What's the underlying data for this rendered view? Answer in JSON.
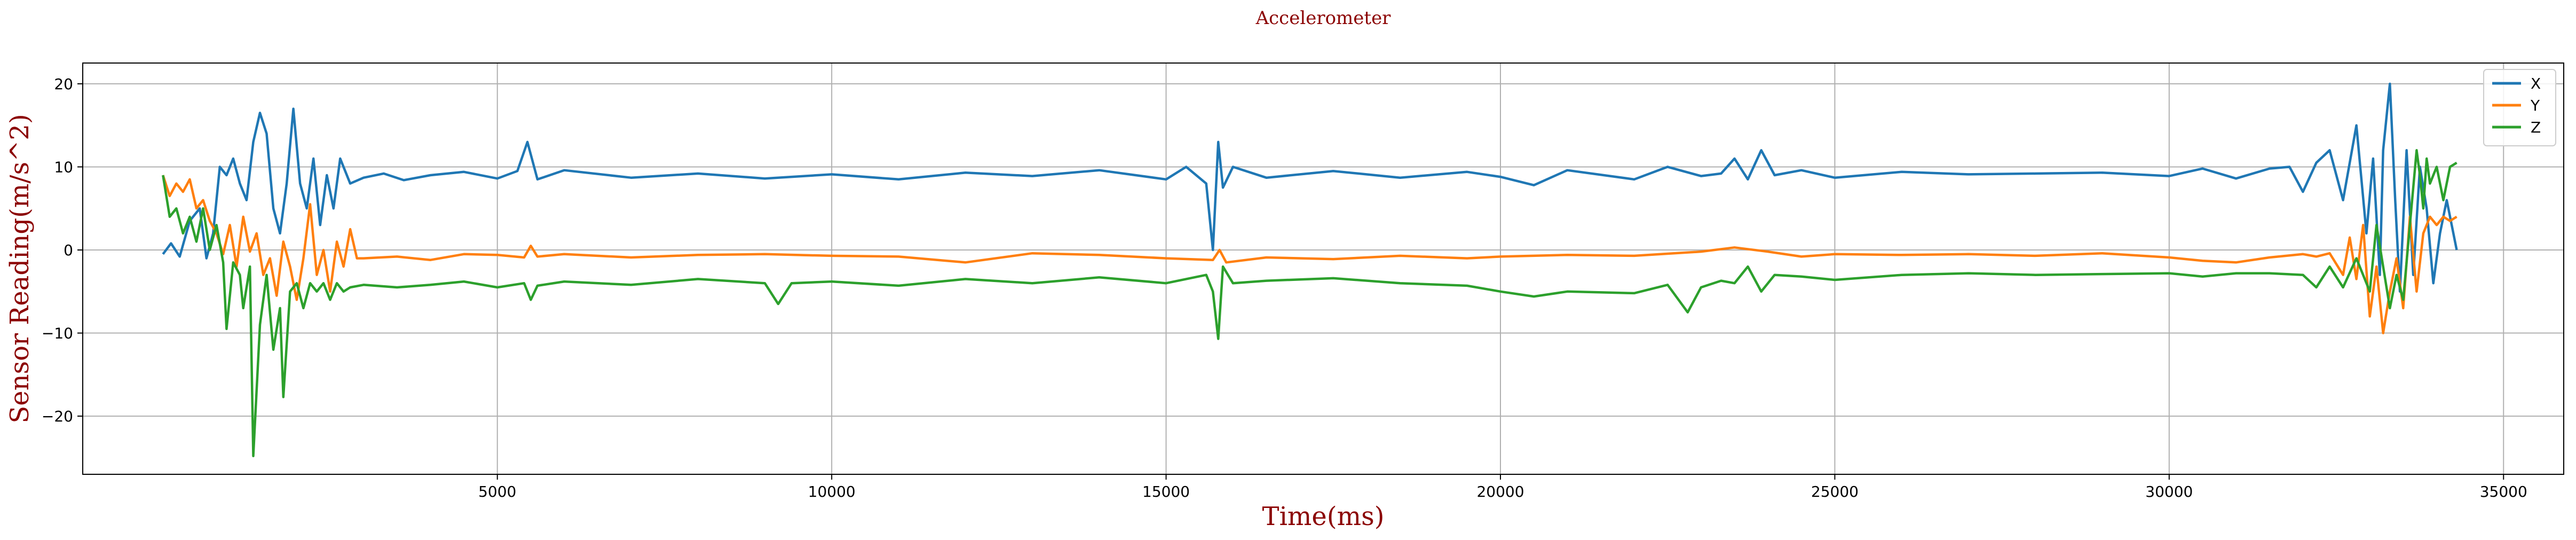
{
  "chart_data": {
    "type": "line",
    "title": "Accelerometer",
    "xlabel": "Time(ms)",
    "ylabel": "Sensor Reading(m/s^2)",
    "xlim": [
      -1200,
      35900
    ],
    "ylim": [
      -27,
      22.5
    ],
    "xticks": [
      5000,
      10000,
      15000,
      20000,
      25000,
      30000,
      35000
    ],
    "xtick_labels": [
      "5000",
      "10000",
      "15000",
      "20000",
      "25000",
      "30000",
      "35000"
    ],
    "yticks": [
      -20,
      -10,
      0,
      10,
      20
    ],
    "ytick_labels": [
      "−20",
      "−10",
      "0",
      "10",
      "20"
    ],
    "grid": true,
    "legend_position": "top-right",
    "series": [
      {
        "name": "X",
        "color": "#1f77b4",
        "points": [
          [
            0,
            -0.5
          ],
          [
            120,
            0.8
          ],
          [
            250,
            -0.8
          ],
          [
            400,
            3.5
          ],
          [
            550,
            5
          ],
          [
            650,
            -1
          ],
          [
            750,
            2
          ],
          [
            850,
            10
          ],
          [
            950,
            9
          ],
          [
            1050,
            11
          ],
          [
            1150,
            8
          ],
          [
            1250,
            6
          ],
          [
            1350,
            13
          ],
          [
            1450,
            16.5
          ],
          [
            1550,
            14
          ],
          [
            1650,
            5
          ],
          [
            1750,
            2
          ],
          [
            1850,
            8
          ],
          [
            1950,
            17
          ],
          [
            2050,
            8
          ],
          [
            2150,
            5
          ],
          [
            2250,
            11
          ],
          [
            2350,
            3
          ],
          [
            2450,
            9
          ],
          [
            2550,
            5
          ],
          [
            2650,
            11
          ],
          [
            2800,
            8
          ],
          [
            3000,
            8.7
          ],
          [
            3300,
            9.2
          ],
          [
            3600,
            8.4
          ],
          [
            4000,
            9
          ],
          [
            4500,
            9.4
          ],
          [
            5000,
            8.6
          ],
          [
            5300,
            9.5
          ],
          [
            5450,
            13
          ],
          [
            5600,
            8.5
          ],
          [
            6000,
            9.6
          ],
          [
            7000,
            8.7
          ],
          [
            8000,
            9.2
          ],
          [
            9000,
            8.6
          ],
          [
            10000,
            9.1
          ],
          [
            11000,
            8.5
          ],
          [
            12000,
            9.3
          ],
          [
            13000,
            8.9
          ],
          [
            14000,
            9.6
          ],
          [
            15000,
            8.5
          ],
          [
            15300,
            10
          ],
          [
            15600,
            8
          ],
          [
            15700,
            0
          ],
          [
            15780,
            13
          ],
          [
            15850,
            7.5
          ],
          [
            16000,
            10
          ],
          [
            16500,
            8.7
          ],
          [
            17500,
            9.5
          ],
          [
            18500,
            8.7
          ],
          [
            19500,
            9.4
          ],
          [
            20000,
            8.8
          ],
          [
            20500,
            7.8
          ],
          [
            21000,
            9.6
          ],
          [
            22000,
            8.5
          ],
          [
            22500,
            10
          ],
          [
            23000,
            8.9
          ],
          [
            23300,
            9.2
          ],
          [
            23500,
            11
          ],
          [
            23700,
            8.5
          ],
          [
            23900,
            12
          ],
          [
            24100,
            9
          ],
          [
            24500,
            9.6
          ],
          [
            25000,
            8.7
          ],
          [
            26000,
            9.4
          ],
          [
            27000,
            9.1
          ],
          [
            28000,
            9.2
          ],
          [
            29000,
            9.3
          ],
          [
            30000,
            8.9
          ],
          [
            30500,
            9.8
          ],
          [
            31000,
            8.6
          ],
          [
            31500,
            9.8
          ],
          [
            31800,
            10
          ],
          [
            32000,
            7
          ],
          [
            32200,
            10.5
          ],
          [
            32400,
            12
          ],
          [
            32600,
            6
          ],
          [
            32800,
            15
          ],
          [
            32950,
            2
          ],
          [
            33050,
            11
          ],
          [
            33150,
            -3
          ],
          [
            33200,
            12
          ],
          [
            33300,
            20
          ],
          [
            33380,
            6
          ],
          [
            33450,
            -5
          ],
          [
            33550,
            12
          ],
          [
            33650,
            -3
          ],
          [
            33750,
            10
          ],
          [
            33850,
            5
          ],
          [
            33950,
            -4
          ],
          [
            34050,
            2
          ],
          [
            34150,
            6
          ],
          [
            34300,
            0
          ]
        ]
      },
      {
        "name": "Y",
        "color": "#ff7f0e",
        "points": [
          [
            0,
            9
          ],
          [
            100,
            6.5
          ],
          [
            200,
            8
          ],
          [
            300,
            7
          ],
          [
            400,
            8.5
          ],
          [
            500,
            5
          ],
          [
            600,
            6
          ],
          [
            700,
            3.5
          ],
          [
            800,
            2
          ],
          [
            900,
            -0.5
          ],
          [
            1000,
            3
          ],
          [
            1100,
            -2
          ],
          [
            1200,
            4
          ],
          [
            1300,
            -0.2
          ],
          [
            1400,
            2
          ],
          [
            1500,
            -3
          ],
          [
            1600,
            -1
          ],
          [
            1700,
            -5.5
          ],
          [
            1800,
            1
          ],
          [
            1900,
            -2
          ],
          [
            2000,
            -6
          ],
          [
            2100,
            -1
          ],
          [
            2200,
            5.5
          ],
          [
            2300,
            -3
          ],
          [
            2400,
            0
          ],
          [
            2500,
            -5
          ],
          [
            2600,
            1
          ],
          [
            2700,
            -2
          ],
          [
            2800,
            2.5
          ],
          [
            2900,
            -1
          ],
          [
            3000,
            -1
          ],
          [
            3500,
            -0.8
          ],
          [
            4000,
            -1.2
          ],
          [
            4500,
            -0.5
          ],
          [
            5000,
            -0.6
          ],
          [
            5400,
            -0.9
          ],
          [
            5500,
            0.5
          ],
          [
            5600,
            -0.8
          ],
          [
            6000,
            -0.5
          ],
          [
            7000,
            -0.9
          ],
          [
            8000,
            -0.6
          ],
          [
            9000,
            -0.5
          ],
          [
            10000,
            -0.7
          ],
          [
            11000,
            -0.8
          ],
          [
            12000,
            -1.5
          ],
          [
            13000,
            -0.4
          ],
          [
            14000,
            -0.6
          ],
          [
            15000,
            -1
          ],
          [
            15700,
            -1.2
          ],
          [
            15800,
            0
          ],
          [
            15900,
            -1.5
          ],
          [
            16500,
            -0.9
          ],
          [
            17500,
            -1.1
          ],
          [
            18500,
            -0.7
          ],
          [
            19500,
            -1
          ],
          [
            20000,
            -0.8
          ],
          [
            21000,
            -0.6
          ],
          [
            22000,
            -0.7
          ],
          [
            23000,
            -0.2
          ],
          [
            23500,
            0.3
          ],
          [
            24000,
            -0.2
          ],
          [
            24500,
            -0.8
          ],
          [
            25000,
            -0.5
          ],
          [
            26000,
            -0.6
          ],
          [
            27000,
            -0.5
          ],
          [
            28000,
            -0.7
          ],
          [
            29000,
            -0.4
          ],
          [
            30000,
            -0.9
          ],
          [
            30500,
            -1.3
          ],
          [
            31000,
            -1.5
          ],
          [
            31500,
            -0.9
          ],
          [
            32000,
            -0.5
          ],
          [
            32200,
            -0.8
          ],
          [
            32400,
            -0.4
          ],
          [
            32600,
            -3
          ],
          [
            32700,
            1.5
          ],
          [
            32800,
            -3.5
          ],
          [
            32900,
            3
          ],
          [
            33000,
            -8
          ],
          [
            33100,
            -2
          ],
          [
            33200,
            -10
          ],
          [
            33300,
            -5
          ],
          [
            33400,
            -1
          ],
          [
            33500,
            -7
          ],
          [
            33600,
            4
          ],
          [
            33700,
            -5
          ],
          [
            33800,
            2
          ],
          [
            33900,
            4
          ],
          [
            34000,
            3
          ],
          [
            34100,
            4
          ],
          [
            34200,
            3.5
          ],
          [
            34300,
            4
          ]
        ]
      },
      {
        "name": "Z",
        "color": "#2ca02c",
        "points": [
          [
            0,
            9
          ],
          [
            100,
            4
          ],
          [
            200,
            5
          ],
          [
            300,
            2
          ],
          [
            400,
            4
          ],
          [
            500,
            1
          ],
          [
            600,
            5
          ],
          [
            700,
            0
          ],
          [
            800,
            3
          ],
          [
            900,
            -1.5
          ],
          [
            950,
            -9.5
          ],
          [
            1050,
            -1.5
          ],
          [
            1150,
            -3
          ],
          [
            1200,
            -7
          ],
          [
            1300,
            -2
          ],
          [
            1350,
            -24.8
          ],
          [
            1450,
            -9
          ],
          [
            1550,
            -3
          ],
          [
            1650,
            -12
          ],
          [
            1750,
            -7
          ],
          [
            1800,
            -17.7
          ],
          [
            1900,
            -5
          ],
          [
            2000,
            -4
          ],
          [
            2100,
            -7
          ],
          [
            2200,
            -4
          ],
          [
            2300,
            -5
          ],
          [
            2400,
            -4
          ],
          [
            2500,
            -6
          ],
          [
            2600,
            -4
          ],
          [
            2700,
            -5
          ],
          [
            2800,
            -4.5
          ],
          [
            3000,
            -4.2
          ],
          [
            3500,
            -4.5
          ],
          [
            4000,
            -4.2
          ],
          [
            4500,
            -3.8
          ],
          [
            5000,
            -4.5
          ],
          [
            5400,
            -4
          ],
          [
            5500,
            -6
          ],
          [
            5600,
            -4.3
          ],
          [
            6000,
            -3.8
          ],
          [
            7000,
            -4.2
          ],
          [
            8000,
            -3.5
          ],
          [
            9000,
            -4
          ],
          [
            9200,
            -6.5
          ],
          [
            9400,
            -4
          ],
          [
            10000,
            -3.8
          ],
          [
            11000,
            -4.3
          ],
          [
            12000,
            -3.5
          ],
          [
            13000,
            -4
          ],
          [
            14000,
            -3.3
          ],
          [
            15000,
            -4
          ],
          [
            15600,
            -3
          ],
          [
            15700,
            -5
          ],
          [
            15780,
            -10.7
          ],
          [
            15850,
            -2
          ],
          [
            16000,
            -4
          ],
          [
            16500,
            -3.7
          ],
          [
            17500,
            -3.4
          ],
          [
            18500,
            -4
          ],
          [
            19500,
            -4.3
          ],
          [
            20000,
            -5
          ],
          [
            20500,
            -5.6
          ],
          [
            21000,
            -5
          ],
          [
            22000,
            -5.2
          ],
          [
            22500,
            -4.2
          ],
          [
            22800,
            -7.5
          ],
          [
            23000,
            -4.5
          ],
          [
            23300,
            -3.7
          ],
          [
            23500,
            -4
          ],
          [
            23700,
            -2
          ],
          [
            23900,
            -5
          ],
          [
            24100,
            -3
          ],
          [
            24500,
            -3.2
          ],
          [
            25000,
            -3.6
          ],
          [
            26000,
            -3
          ],
          [
            27000,
            -2.8
          ],
          [
            28000,
            -3
          ],
          [
            29000,
            -2.9
          ],
          [
            30000,
            -2.8
          ],
          [
            30500,
            -3.2
          ],
          [
            31000,
            -2.8
          ],
          [
            31500,
            -2.8
          ],
          [
            32000,
            -3
          ],
          [
            32200,
            -4.5
          ],
          [
            32400,
            -2
          ],
          [
            32600,
            -4.5
          ],
          [
            32800,
            -1
          ],
          [
            33000,
            -5
          ],
          [
            33100,
            3
          ],
          [
            33200,
            -2
          ],
          [
            33300,
            -7
          ],
          [
            33400,
            -3
          ],
          [
            33500,
            -6
          ],
          [
            33600,
            3
          ],
          [
            33700,
            12
          ],
          [
            33750,
            9
          ],
          [
            33800,
            5
          ],
          [
            33850,
            11
          ],
          [
            33900,
            8
          ],
          [
            34000,
            10
          ],
          [
            34100,
            6
          ],
          [
            34200,
            10
          ],
          [
            34300,
            10.5
          ]
        ]
      }
    ]
  }
}
